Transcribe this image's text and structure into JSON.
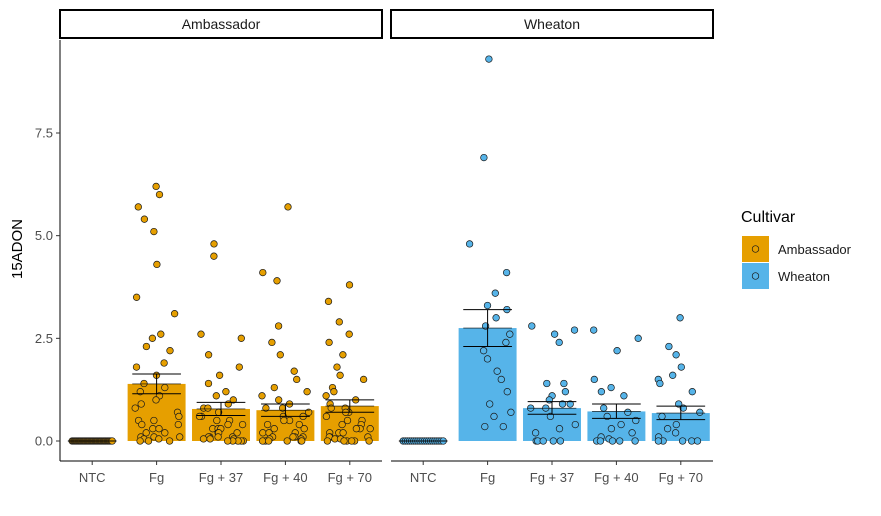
{
  "chart_data": {
    "type": "bar",
    "ylabel": "15ADON",
    "yticks": [
      0,
      2.5,
      5,
      7.5
    ],
    "ytick_labels": [
      "0.0",
      "2.5",
      "5.0",
      "7.5"
    ],
    "ylim": [
      -0.35,
      10.0
    ],
    "categories": [
      "NTC",
      "Fg",
      "Fg + 37",
      "Fg + 40",
      "Fg + 70"
    ],
    "legend": {
      "title": "Cultivar",
      "position": "right",
      "entries": [
        {
          "label": "Ambassador",
          "color": "#E69F00"
        },
        {
          "label": "Wheaton",
          "color": "#56B4E9"
        }
      ]
    },
    "panels": [
      {
        "title": "Ambassador",
        "color": "#E69F00",
        "means": [
          0.0,
          1.39,
          0.78,
          0.75,
          0.85
        ],
        "error_low": [
          0.0,
          1.15,
          0.62,
          0.6,
          0.7
        ],
        "error_high": [
          0.0,
          1.63,
          0.94,
          0.9,
          1.0
        ],
        "points": [
          [
            0,
            0,
            0,
            0,
            0,
            0,
            0,
            0,
            0,
            0,
            0,
            0,
            0,
            0,
            0,
            0,
            0,
            0,
            0,
            0,
            0,
            0,
            0,
            0,
            0,
            0,
            0,
            0,
            0,
            0,
            0,
            0,
            0,
            0,
            0,
            0,
            0,
            0,
            0,
            0
          ],
          [
            6.2,
            6.0,
            5.7,
            5.4,
            5.1,
            4.3,
            3.5,
            3.1,
            2.6,
            2.5,
            2.3,
            2.2,
            1.9,
            1.8,
            1.6,
            1.4,
            1.3,
            1.2,
            1.1,
            1.0,
            0.9,
            0.8,
            0.7,
            0.6,
            0.5,
            0.5,
            0.4,
            0.4,
            0.3,
            0.3,
            0.2,
            0.2,
            0.1,
            0.1,
            0.1,
            0.05,
            0.05,
            0.0,
            0.0,
            0.0
          ],
          [
            4.8,
            4.5,
            2.6,
            2.5,
            2.1,
            1.8,
            1.6,
            1.4,
            1.2,
            1.1,
            1.0,
            0.9,
            0.8,
            0.8,
            0.7,
            0.6,
            0.6,
            0.5,
            0.5,
            0.4,
            0.4,
            0.3,
            0.3,
            0.3,
            0.2,
            0.2,
            0.2,
            0.1,
            0.1,
            0.1,
            0.1,
            0.05,
            0.05,
            0.05,
            0.0,
            0.0,
            0.0,
            0.0,
            0.0,
            0.0
          ],
          [
            5.7,
            4.1,
            3.9,
            2.8,
            2.4,
            2.1,
            1.7,
            1.5,
            1.3,
            1.2,
            1.1,
            1.0,
            0.9,
            0.8,
            0.8,
            0.7,
            0.6,
            0.6,
            0.5,
            0.5,
            0.4,
            0.4,
            0.3,
            0.3,
            0.2,
            0.2,
            0.2,
            0.1,
            0.1,
            0.1,
            0.1,
            0.05,
            0.05,
            0.0,
            0.0,
            0.0,
            0.0,
            0.0,
            0.0,
            0.0
          ],
          [
            3.8,
            3.4,
            2.9,
            2.6,
            2.4,
            2.1,
            1.8,
            1.6,
            1.5,
            1.3,
            1.2,
            1.1,
            1.0,
            0.9,
            0.8,
            0.8,
            0.7,
            0.7,
            0.6,
            0.5,
            0.5,
            0.4,
            0.4,
            0.3,
            0.3,
            0.3,
            0.2,
            0.2,
            0.2,
            0.1,
            0.1,
            0.1,
            0.05,
            0.05,
            0.0,
            0.0,
            0.0,
            0.0,
            0.0,
            0.0
          ]
        ]
      },
      {
        "title": "Wheaton",
        "color": "#56B4E9",
        "means": [
          0.0,
          2.75,
          0.8,
          0.72,
          0.68
        ],
        "error_low": [
          0.0,
          2.3,
          0.65,
          0.55,
          0.52
        ],
        "error_high": [
          0.0,
          3.2,
          0.96,
          0.9,
          0.85
        ],
        "points": [
          [
            0,
            0,
            0,
            0,
            0,
            0,
            0,
            0,
            0,
            0,
            0,
            0,
            0,
            0,
            0,
            0,
            0,
            0,
            0,
            0
          ],
          [
            9.3,
            6.9,
            4.8,
            4.1,
            3.6,
            3.3,
            3.2,
            3.0,
            2.8,
            2.6,
            2.4,
            2.2,
            2.0,
            1.7,
            1.5,
            1.2,
            0.9,
            0.7,
            0.6,
            0.35,
            0.35
          ],
          [
            2.8,
            2.7,
            2.6,
            2.4,
            1.4,
            1.4,
            1.2,
            1.1,
            1.0,
            0.9,
            0.9,
            0.8,
            0.8,
            0.6,
            0.4,
            0.3,
            0.2,
            0.0,
            0.0,
            0.0,
            0.0,
            0.0
          ],
          [
            2.7,
            2.5,
            2.2,
            1.5,
            1.3,
            1.2,
            1.1,
            0.8,
            0.7,
            0.6,
            0.5,
            0.4,
            0.3,
            0.2,
            0.1,
            0.05,
            0.0,
            0.0,
            0.0,
            0.0,
            0.0
          ],
          [
            3.0,
            2.3,
            2.1,
            1.8,
            1.6,
            1.5,
            1.4,
            1.2,
            0.9,
            0.8,
            0.7,
            0.6,
            0.4,
            0.3,
            0.2,
            0.1,
            0.0,
            0.0,
            0.0,
            0.0,
            0.0
          ]
        ]
      }
    ]
  }
}
